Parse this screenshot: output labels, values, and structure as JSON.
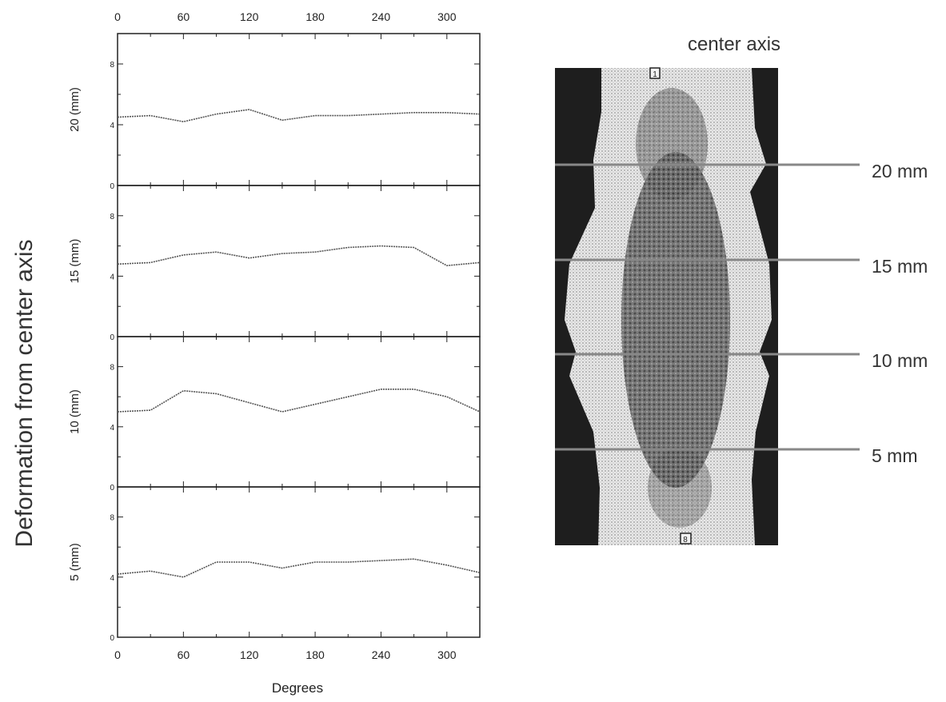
{
  "figure": {
    "ylabel": "Deformation from center axis",
    "xlabel": "Degrees",
    "photo_title": "center axis",
    "photo_labels": [
      "20 mm",
      "15 mm",
      "10 mm",
      "5 mm"
    ],
    "photo_end_marks": [
      "1",
      "8"
    ]
  },
  "chart_data": {
    "type": "line",
    "xlabel": "Degrees",
    "ylabel": "Deformation from center axis",
    "xlim": [
      0,
      330
    ],
    "ylim": [
      0,
      10
    ],
    "xticks": [
      0,
      60,
      120,
      180,
      240,
      300
    ],
    "yticks": [
      0,
      4,
      8
    ],
    "grid": false,
    "x": [
      0,
      30,
      60,
      90,
      120,
      150,
      180,
      210,
      240,
      270,
      300,
      330
    ],
    "panels": [
      {
        "ylabel": "20 (mm)",
        "values": [
          4.5,
          4.6,
          4.2,
          4.7,
          5.0,
          4.3,
          4.6,
          4.6,
          4.7,
          4.8,
          4.8,
          4.7
        ]
      },
      {
        "ylabel": "15 (mm)",
        "values": [
          4.8,
          4.9,
          5.4,
          5.6,
          5.2,
          5.5,
          5.6,
          5.9,
          6.0,
          5.9,
          4.7,
          4.9
        ]
      },
      {
        "ylabel": "10 (mm)",
        "values": [
          5.0,
          5.1,
          6.4,
          6.2,
          5.6,
          5.0,
          5.5,
          6.0,
          6.5,
          6.5,
          6.0,
          5.0
        ]
      },
      {
        "ylabel": "5 (mm)",
        "values": [
          4.2,
          4.4,
          4.0,
          5.0,
          5.0,
          4.6,
          5.0,
          5.0,
          5.1,
          5.2,
          4.8,
          4.3
        ]
      }
    ]
  }
}
